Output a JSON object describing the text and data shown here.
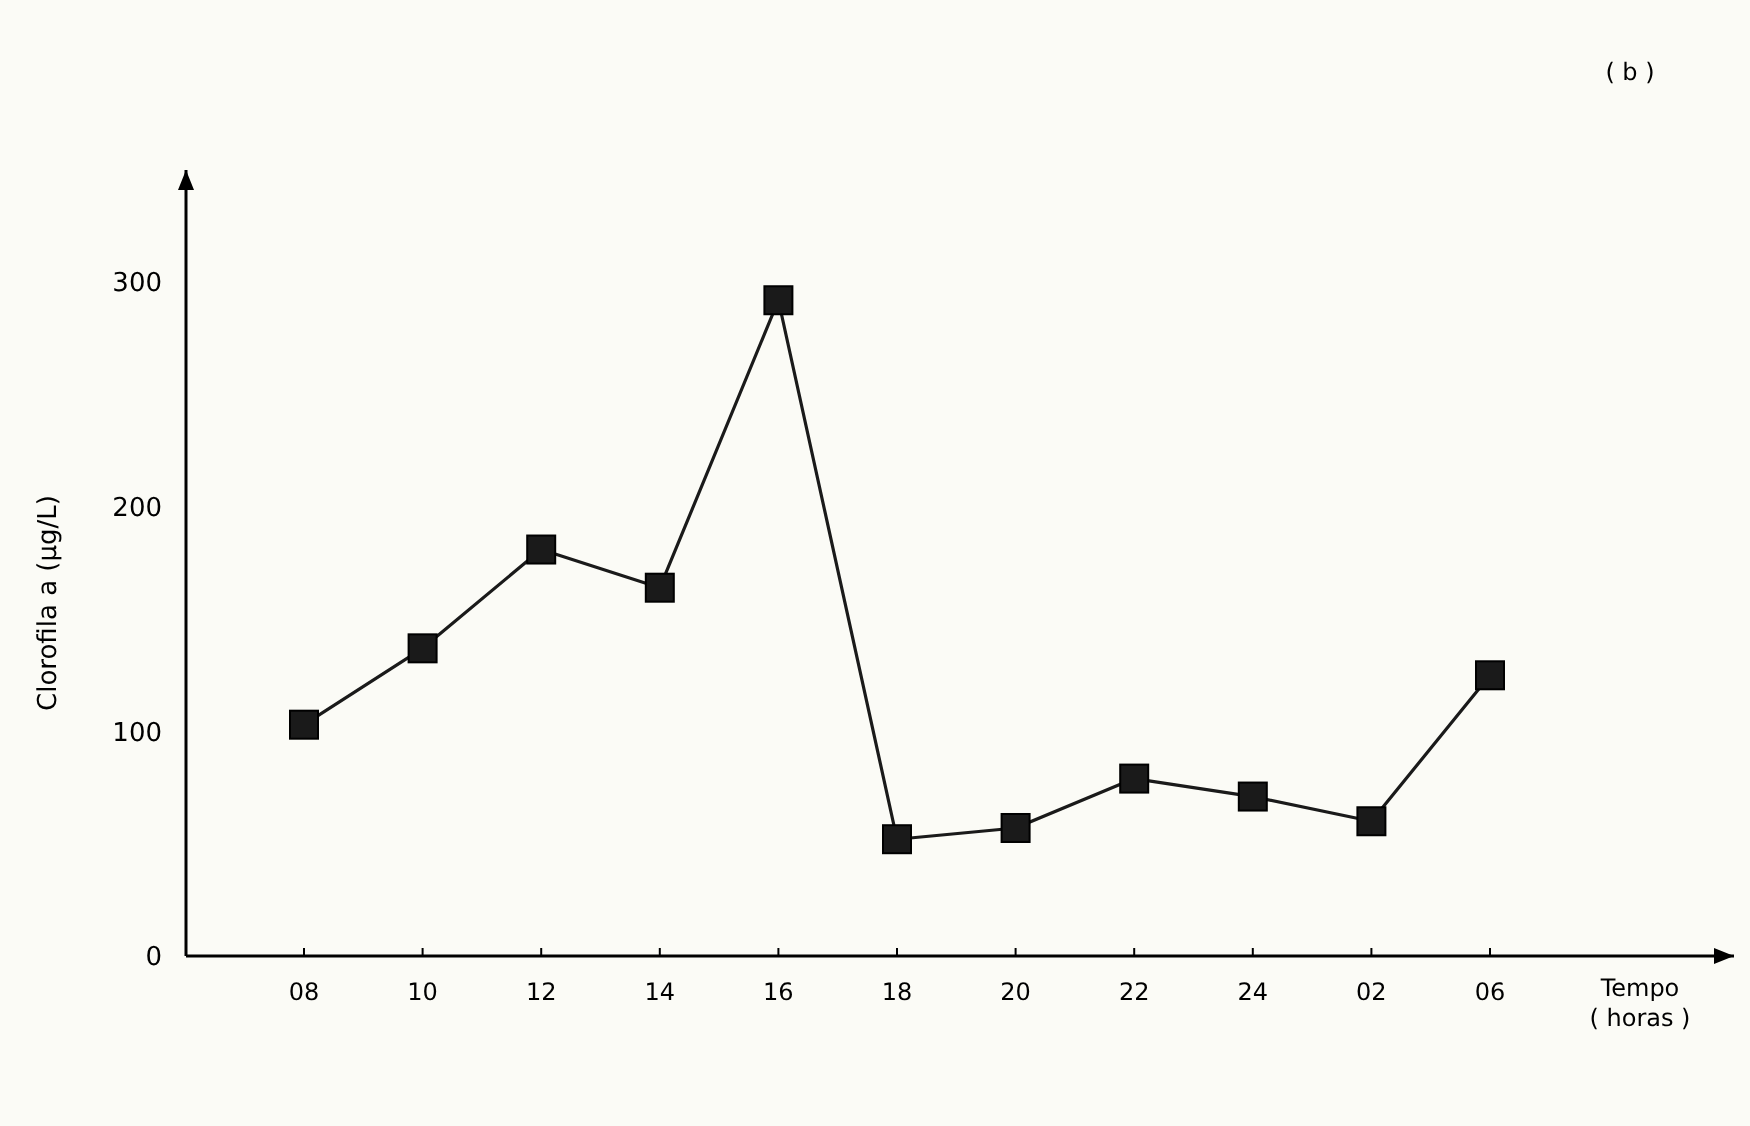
{
  "chart_data": {
    "type": "line",
    "title": "( b )",
    "xlabel": "Tempo\n( horas )",
    "ylabel": "Clorofila a (µg/L)",
    "categories": [
      "08",
      "10",
      "12",
      "14",
      "16",
      "18",
      "20",
      "22",
      "24",
      "02",
      "06"
    ],
    "series": [
      {
        "color": "#1a1a1a",
        "values": [
          103,
          137,
          181,
          164,
          292,
          52,
          57,
          79,
          71,
          60,
          125
        ]
      }
    ],
    "ylim": [
      0,
      350
    ],
    "yticks": [
      0,
      100,
      200,
      300
    ],
    "marker": "square",
    "line_style": "solid",
    "grid": false
  }
}
